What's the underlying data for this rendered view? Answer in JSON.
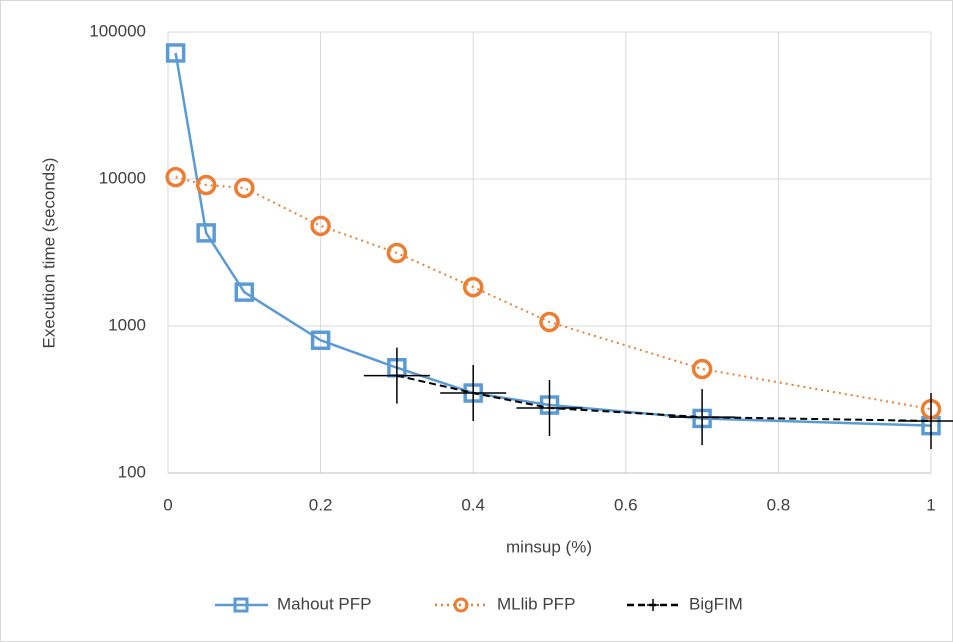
{
  "chart_data": {
    "type": "line",
    "xlabel": "minsup (%)",
    "ylabel": "Execution time (seconds)",
    "xlim": [
      0,
      1
    ],
    "xticks": [
      0,
      0.2,
      0.4,
      0.6,
      0.8,
      1
    ],
    "ylim": [
      100,
      100000
    ],
    "yticks": [
      100,
      1000,
      10000,
      100000
    ],
    "log_y": true,
    "grid": true,
    "legend": "bottom",
    "series": [
      {
        "name": "Mahout PFP",
        "color": "#5b9bd5",
        "style": "solid",
        "marker": "square",
        "x": [
          0.01,
          0.05,
          0.1,
          0.2,
          0.3,
          0.4,
          0.5,
          0.7,
          1
        ],
        "values": [
          72000,
          4300,
          1700,
          800,
          520,
          350,
          290,
          235,
          210
        ]
      },
      {
        "name": "MLlib PFP",
        "color": "#ed7d31",
        "style": "dotted",
        "marker": "circle",
        "x": [
          0.01,
          0.05,
          0.1,
          0.2,
          0.3,
          0.4,
          0.5,
          0.7,
          1
        ],
        "values": [
          10300,
          9100,
          8700,
          4800,
          3140,
          1840,
          1065,
          510,
          272
        ]
      },
      {
        "name": "BigFIM",
        "color": "#000000",
        "style": "dashed",
        "marker": "plus",
        "x": [
          0.3,
          0.4,
          0.5,
          0.7,
          1
        ],
        "values": [
          460,
          350,
          277,
          240,
          226
        ]
      }
    ]
  }
}
